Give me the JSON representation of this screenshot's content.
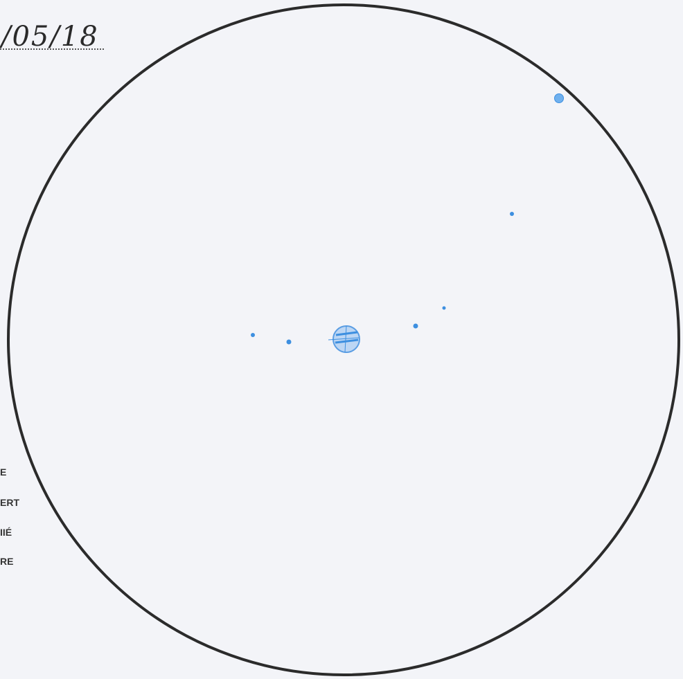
{
  "sketch": {
    "date_fragment": "/05/18",
    "legend_fragments": [
      "E",
      "ERT",
      "IIÉ",
      "RE"
    ],
    "ink_color": "#3d8fe0",
    "circle_color": "#2b2b2b"
  }
}
